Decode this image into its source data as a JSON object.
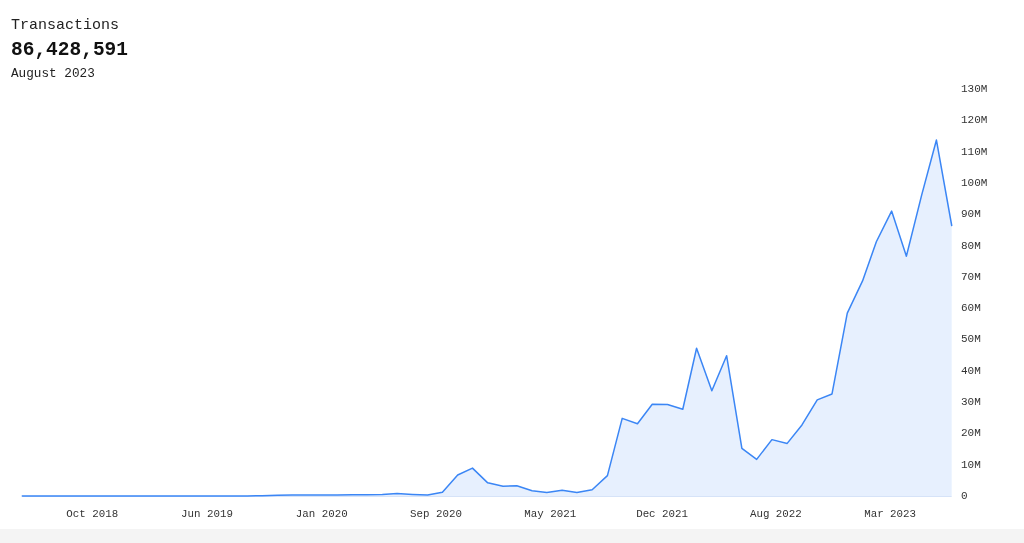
{
  "chart_data": {
    "type": "area",
    "title": "Transactions",
    "subtitle": "86,428,591",
    "annotations": [
      "August 2023"
    ],
    "x": [
      "2018-06",
      "2018-07",
      "2018-08",
      "2018-09",
      "2018-10",
      "2018-11",
      "2018-12",
      "2019-01",
      "2019-02",
      "2019-03",
      "2019-04",
      "2019-05",
      "2019-06",
      "2019-07",
      "2019-08",
      "2019-09",
      "2019-10",
      "2019-11",
      "2019-12",
      "2020-01",
      "2020-02",
      "2020-03",
      "2020-04",
      "2020-05",
      "2020-06",
      "2020-07",
      "2020-08",
      "2020-09",
      "2020-10",
      "2020-11",
      "2020-12",
      "2021-01",
      "2021-02",
      "2021-03",
      "2021-04",
      "2021-05",
      "2021-06",
      "2021-07",
      "2021-08",
      "2021-09",
      "2021-10",
      "2021-11",
      "2021-12",
      "2022-01",
      "2022-02",
      "2022-03",
      "2022-04",
      "2022-05",
      "2022-06",
      "2022-07",
      "2022-08",
      "2022-09",
      "2022-10",
      "2022-11",
      "2022-12",
      "2023-01",
      "2023-02",
      "2023-03",
      "2023-04",
      "2023-05",
      "2023-06",
      "2023-07",
      "2023-08"
    ],
    "series": [
      {
        "color": "#3b86f5",
        "values": [
          0,
          0,
          0,
          0,
          0,
          0,
          0,
          0,
          0,
          0,
          0,
          0,
          0,
          0,
          0,
          0,
          0.1,
          0.2,
          0.3,
          0.3,
          0.3,
          0.3,
          0.4,
          0.4,
          0.5,
          0.8,
          0.5,
          0.3,
          1.2,
          6.7,
          8.9,
          4.2,
          3.1,
          3.3,
          1.7,
          1.1,
          1.8,
          1.1,
          2.0,
          6.5,
          24.8,
          23.1,
          29.3,
          29.2,
          27.7,
          47.2,
          33.6,
          44.8,
          15.2,
          11.7,
          18.0,
          16.8,
          22.7,
          30.7,
          32.6,
          58.4,
          68.7,
          81.2,
          91.0,
          76.6,
          96.1,
          113.7,
          86.4
        ]
      }
    ],
    "xlim": [
      "2018-06",
      "2023-08"
    ],
    "xticks": [
      {
        "value": "2018-10-21",
        "label": "Oct 2018"
      },
      {
        "value": "2019-06-11",
        "label": "Jun 2019"
      },
      {
        "value": "2020-01-30",
        "label": "Jan 2020"
      },
      {
        "value": "2020-09-18",
        "label": "Sep 2020"
      },
      {
        "value": "2021-05-08",
        "label": "May 2021"
      },
      {
        "value": "2021-12-21",
        "label": "Dec 2021"
      },
      {
        "value": "2022-08-09",
        "label": "Aug 2022"
      },
      {
        "value": "2023-03-29",
        "label": "Mar 2023"
      }
    ],
    "ylim": [
      0,
      130
    ],
    "yticks": [
      0,
      {
        "value": 10,
        "label": "10M"
      },
      {
        "value": 20,
        "label": "20M"
      },
      {
        "value": 30,
        "label": "30M"
      },
      {
        "value": 40,
        "label": "40M"
      },
      {
        "value": 50,
        "label": "50M"
      },
      {
        "value": 60,
        "label": "60M"
      },
      {
        "value": 70,
        "label": "70M"
      },
      {
        "value": 80,
        "label": "80M"
      },
      {
        "value": 90,
        "label": "90M"
      },
      {
        "value": 100,
        "label": "100M"
      },
      {
        "value": 110,
        "label": "110M"
      },
      {
        "value": 120,
        "label": "120M"
      },
      {
        "value": 130,
        "label": "130M"
      }
    ]
  }
}
